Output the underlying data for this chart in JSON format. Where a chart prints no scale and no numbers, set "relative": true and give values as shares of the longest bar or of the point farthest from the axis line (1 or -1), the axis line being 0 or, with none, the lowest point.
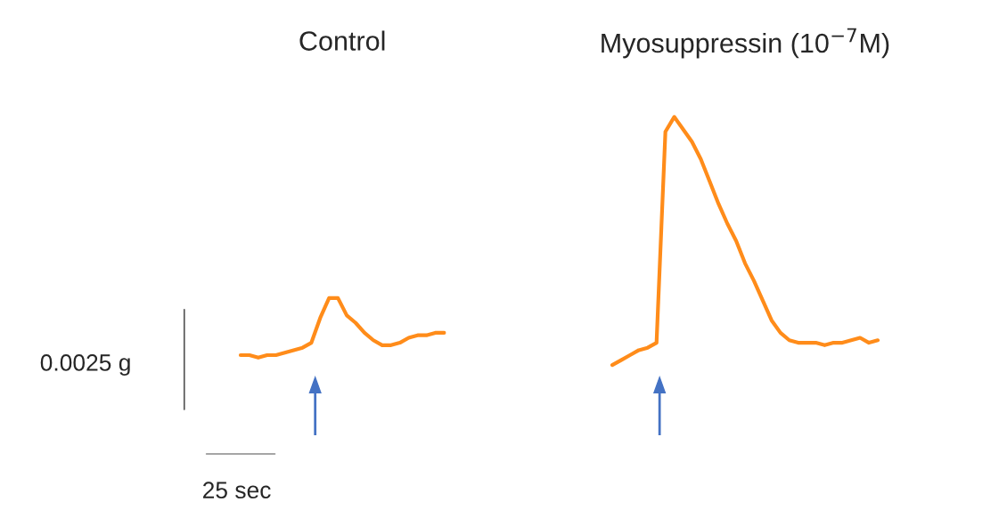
{
  "chart_data": {
    "type": "line",
    "relative": true,
    "categories": [
      null,
      null,
      null,
      null,
      null,
      null,
      null,
      null,
      null,
      null,
      null,
      null,
      null,
      null,
      null,
      null,
      null,
      null,
      null,
      null,
      null,
      null,
      null,
      null,
      null,
      null,
      null,
      null,
      null,
      null,
      null,
      null,
      null,
      null,
      null,
      null,
      null,
      null,
      null,
      null,
      null,
      null,
      null,
      null,
      null,
      null,
      null,
      null,
      null,
      null,
      null,
      null,
      null,
      null,
      null,
      null,
      null,
      null,
      null,
      null,
      null,
      null,
      null,
      null,
      null,
      null,
      null,
      null,
      null,
      null,
      null,
      null,
      null
    ],
    "series": [
      {
        "color": "#ff8c1a",
        "values": [
          0.04,
          0.04,
          0.03,
          0.04,
          0.04,
          0.05,
          0.06,
          0.07,
          0.09,
          0.19,
          0.27,
          0.27,
          0.2,
          0.17,
          0.13,
          0.1,
          0.08,
          0.08,
          0.09,
          0.11,
          0.12,
          0.12,
          0.13,
          0.13,
          null,
          null,
          null,
          null,
          null,
          null,
          null,
          null,
          null,
          null,
          null,
          null,
          null,
          null,
          null,
          null,
          null,
          null,
          null,
          null,
          null,
          null,
          null,
          null,
          null,
          null,
          null,
          null,
          null,
          null,
          null,
          null,
          null,
          null,
          null,
          null,
          null,
          null,
          null,
          null,
          null,
          null,
          null,
          null,
          null,
          null,
          null,
          null,
          null
        ]
      },
      {
        "color": "#ff8c1a",
        "values": [
          null,
          null,
          null,
          null,
          null,
          null,
          null,
          null,
          null,
          null,
          null,
          null,
          null,
          null,
          null,
          null,
          null,
          null,
          null,
          null,
          null,
          null,
          null,
          null,
          null,
          null,
          null,
          null,
          null,
          null,
          null,
          null,
          null,
          null,
          null,
          null,
          null,
          null,
          null,
          null,
          null,
          null,
          0.0,
          0.02,
          0.04,
          0.06,
          0.07,
          0.09,
          0.94,
          1.0,
          0.95,
          0.9,
          0.83,
          0.74,
          0.65,
          0.57,
          0.5,
          0.41,
          0.34,
          0.26,
          0.18,
          0.13,
          0.1,
          0.09,
          0.09,
          0.09,
          0.08,
          0.09,
          0.09,
          0.1,
          0.11,
          0.09,
          0.1
        ]
      }
    ],
    "annotations": [
      "Control",
      "Myosuppressin (10$^{−7}$M)",
      "0.0025 g",
      "25 sec"
    ]
  }
}
